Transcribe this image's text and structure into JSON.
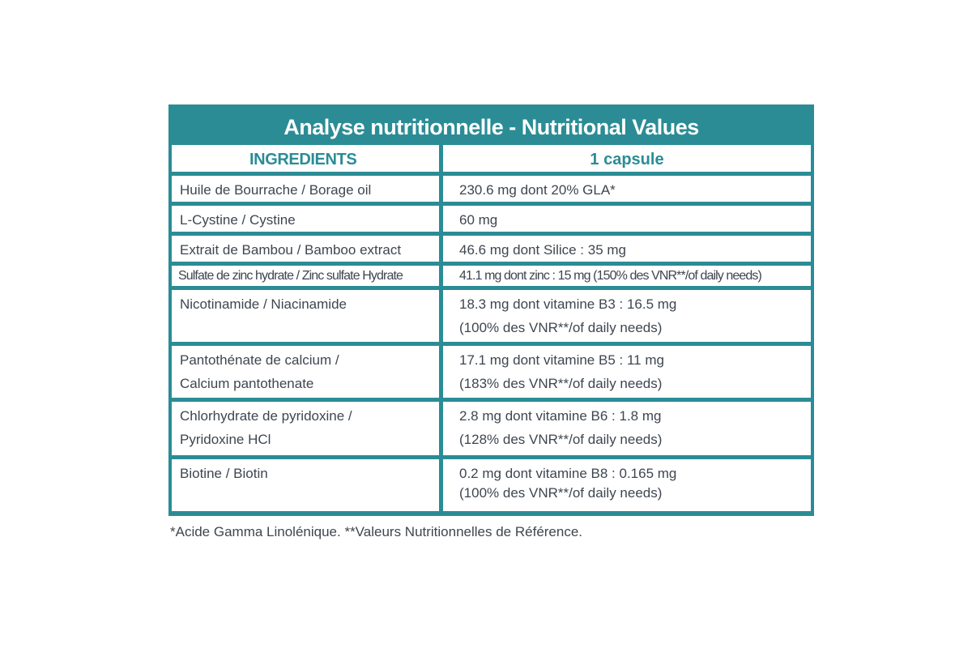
{
  "table": {
    "title": "Analyse nutritionnelle - Nutritional Values",
    "header": {
      "ingredients": "INGREDIENTS",
      "amount": "1 capsule"
    },
    "rows": [
      {
        "ingredient": [
          "Huile de Bourrache / Borage oil"
        ],
        "amount": [
          "230.6 mg dont 20% GLA*"
        ]
      },
      {
        "ingredient": [
          "L-Cystine / Cystine"
        ],
        "amount": [
          "60 mg"
        ]
      },
      {
        "ingredient": [
          "Extrait de Bambou / Bamboo extract"
        ],
        "amount": [
          "46.6 mg dont Silice : 35 mg"
        ]
      },
      {
        "ingredient": [
          "Sulfate de zinc hydrate / Zinc sulfate Hydrate"
        ],
        "amount": [
          "41.1 mg dont zinc : 15 mg (150% des VNR**/of daily needs)"
        ]
      },
      {
        "ingredient": [
          "Nicotinamide / Niacinamide"
        ],
        "amount": [
          "18.3 mg dont vitamine B3 : 16.5 mg",
          "(100% des VNR**/of daily needs)"
        ]
      },
      {
        "ingredient": [
          "Pantothénate de calcium /",
          "Calcium pantothenate"
        ],
        "amount": [
          "17.1 mg dont vitamine B5 : 11 mg",
          "(183% des VNR**/of daily needs)"
        ]
      },
      {
        "ingredient": [
          "Chlorhydrate de pyridoxine /",
          "Pyridoxine HCl"
        ],
        "amount": [
          "2.8 mg dont vitamine B6 : 1.8 mg",
          "(128% des VNR**/of daily needs)"
        ]
      },
      {
        "ingredient": [
          "Biotine / Biotin"
        ],
        "amount": [
          "0.2 mg dont vitamine B8 : 0.165 mg",
          "(100% des VNR**/of daily needs)"
        ]
      }
    ]
  },
  "footnote": "*Acide Gamma Linolénique. **Valeurs Nutritionnelles de Référence.",
  "colors": {
    "accent": "#2b8c95",
    "text": "#3e4650",
    "background": "#ffffff"
  }
}
